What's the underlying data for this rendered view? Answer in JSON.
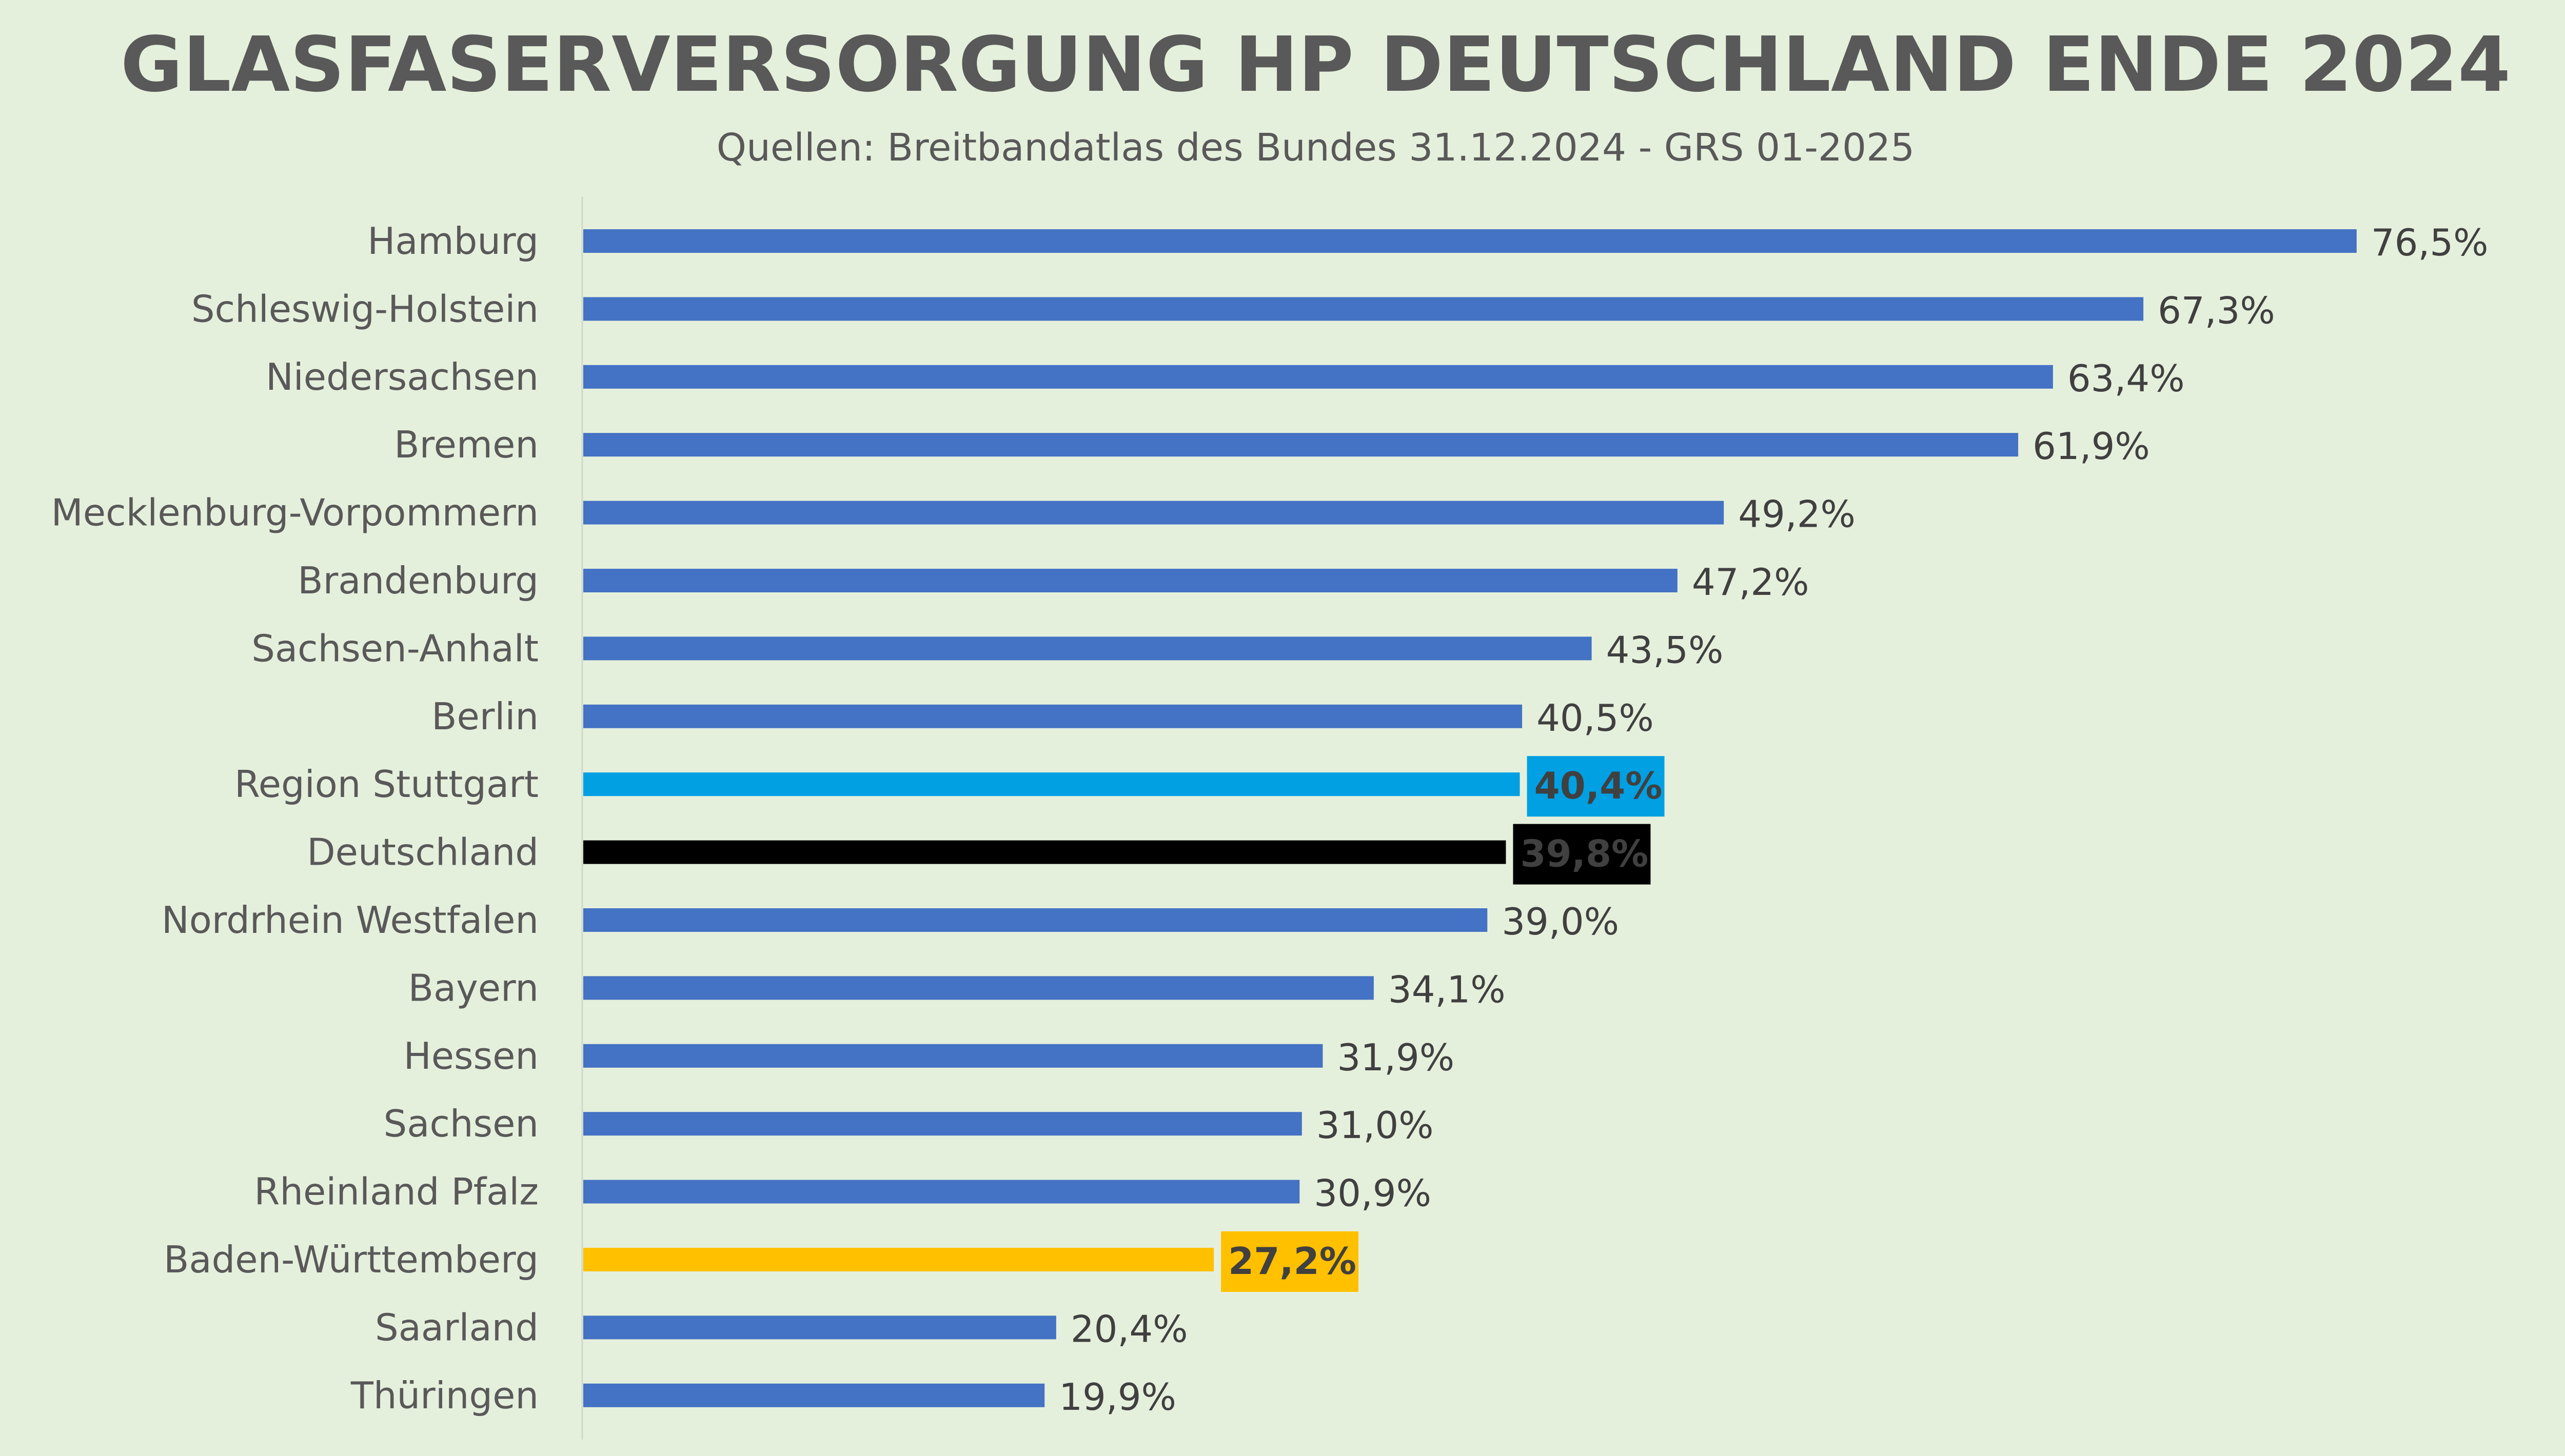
{
  "chart_data": {
    "type": "bar",
    "orientation": "horizontal",
    "title": "GLASFASERVERSORGUNG HP DEUTSCHLAND ENDE 2024",
    "subtitle": "Quellen: Breitbandatlas des Bundes 31.12.2024 - GRS 01-2025",
    "categories": [
      "Hamburg",
      "Schleswig-Holstein",
      "Niedersachsen",
      "Bremen",
      "Mecklenburg-Vorpommern",
      "Brandenburg",
      "Sachsen-Anhalt",
      "Berlin",
      "Region Stuttgart",
      "Deutschland",
      "Nordrhein Westfalen",
      "Bayern",
      "Hessen",
      "Sachsen",
      "Rheinland Pfalz",
      "Baden-Württemberg",
      "Saarland",
      "Thüringen"
    ],
    "values": [
      76.5,
      67.3,
      63.4,
      61.9,
      49.2,
      47.2,
      43.5,
      40.5,
      40.4,
      39.8,
      39.0,
      34.1,
      31.9,
      31.0,
      30.9,
      27.2,
      20.4,
      19.9
    ],
    "value_labels": [
      "76,5%",
      "67,3%",
      "63,4%",
      "61,9%",
      "49,2%",
      "47,2%",
      "43,5%",
      "40,5%",
      "40,4%",
      "39,8%",
      "39,0%",
      "34,1%",
      "31,9%",
      "31,0%",
      "30,9%",
      "27,2%",
      "20,4%",
      "19,9%"
    ],
    "xlim": [
      0,
      80
    ],
    "grid": false,
    "legend": "none",
    "colors": {
      "default": "#4472c4",
      "highlight": {
        "Region Stuttgart": "#00a0e3",
        "Deutschland": "#000000",
        "Baden-Württemberg": "#ffc000"
      },
      "highlight_label_text": {
        "Region Stuttgart": "#ffffff",
        "Deutschland": "#ffffff",
        "Baden-Württemberg": "#000000"
      },
      "background": "#e5f0dc",
      "text": "#595959",
      "axis": "#d0d8c8"
    }
  }
}
